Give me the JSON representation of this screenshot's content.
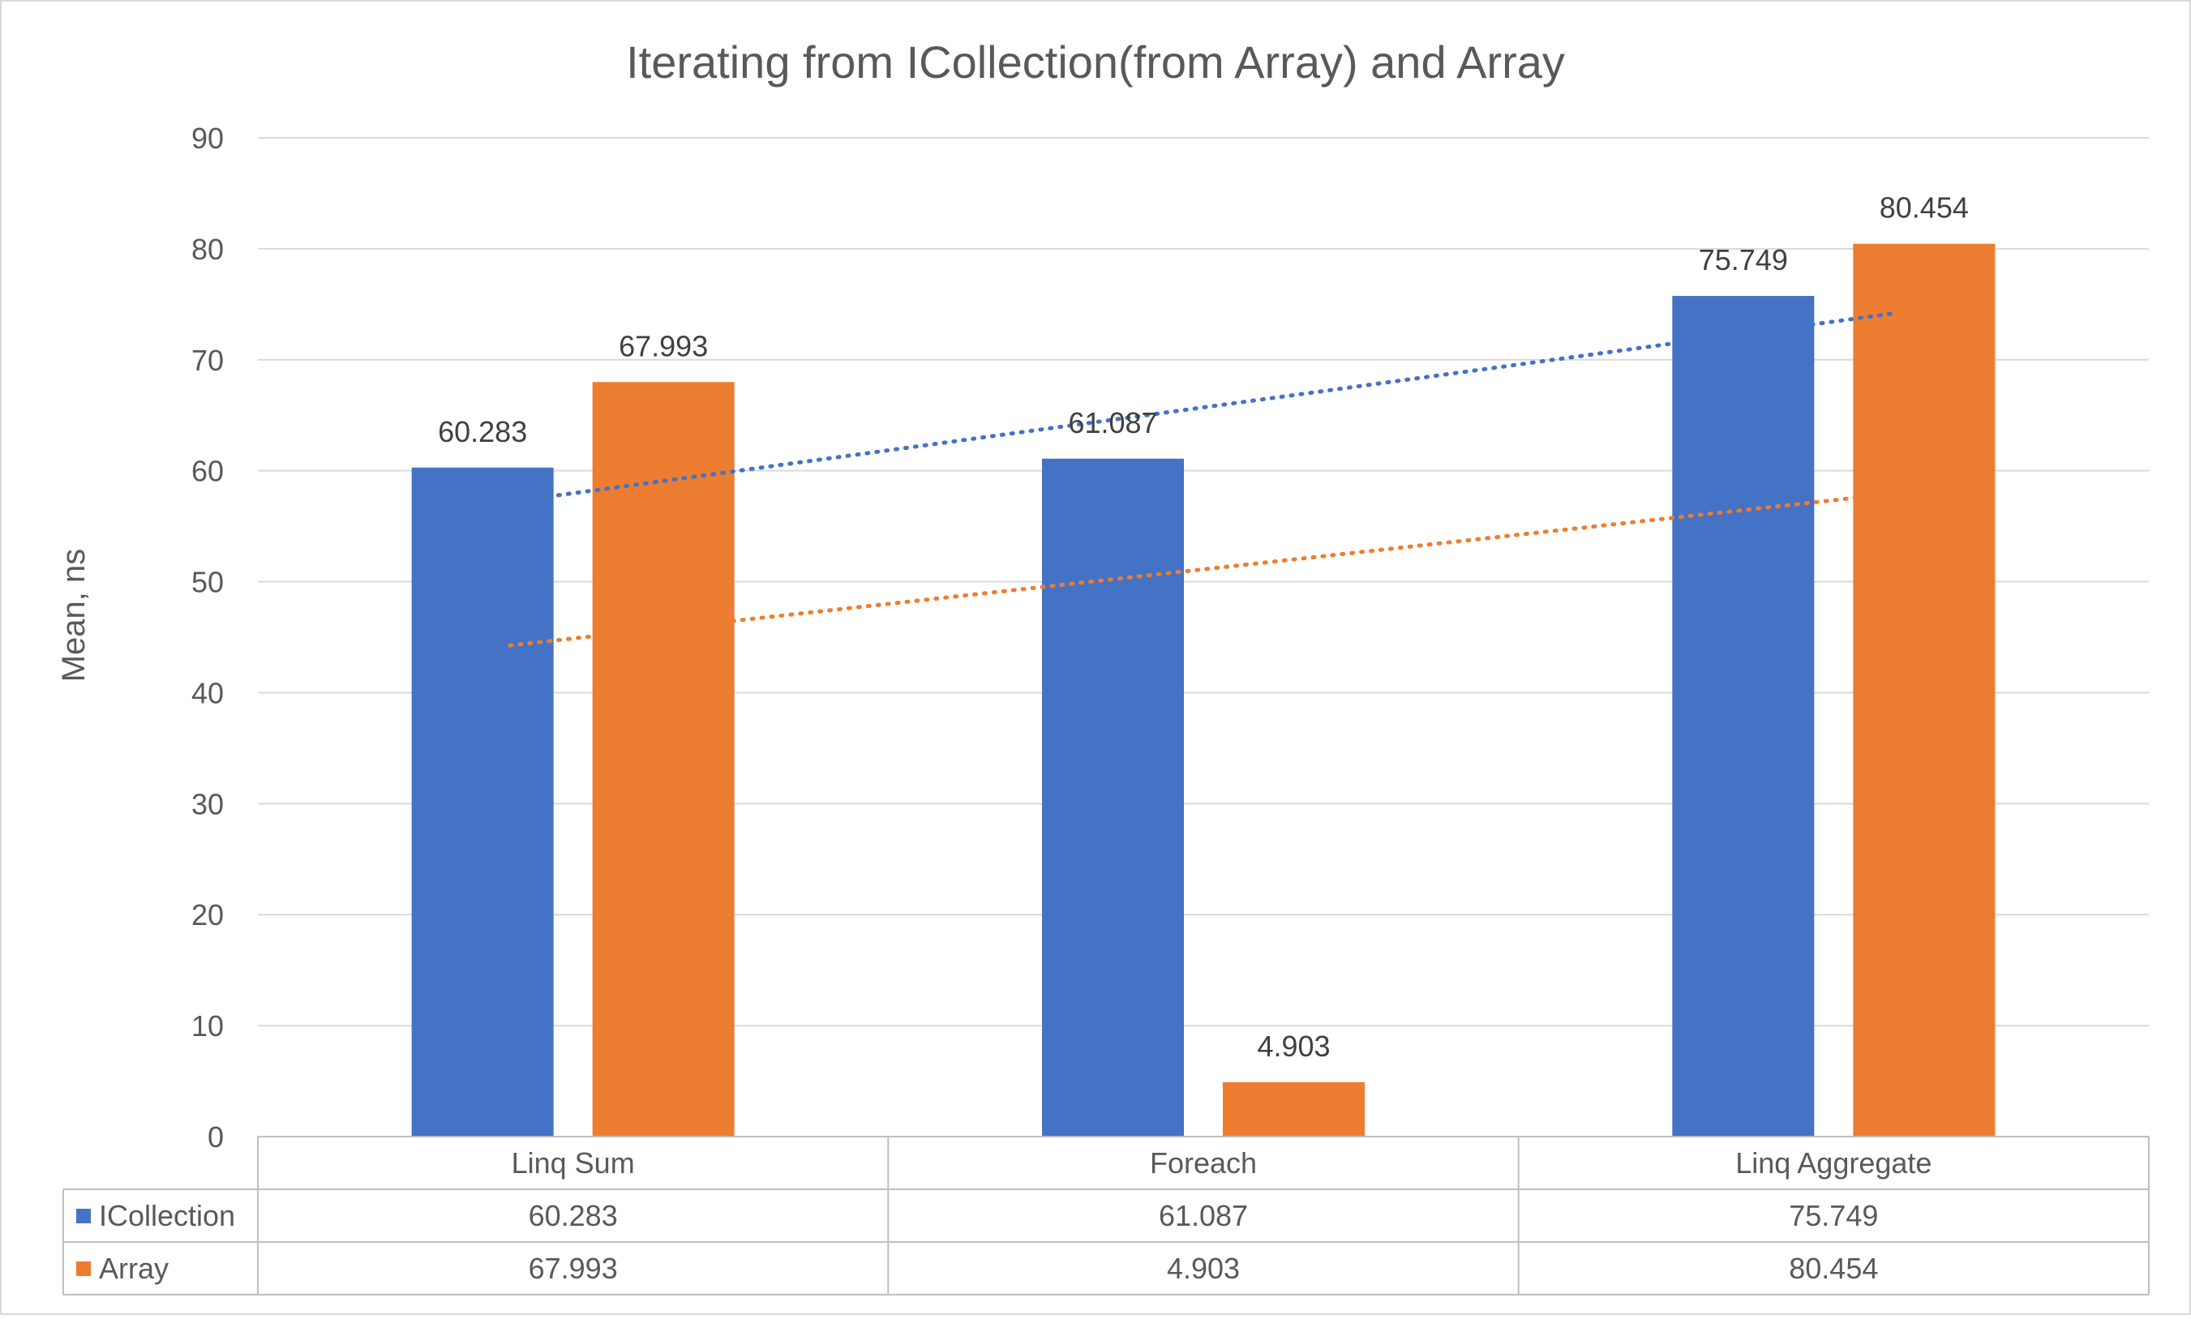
{
  "chart_data": {
    "type": "bar",
    "title": "Iterating from ICollection(from Array) and Array",
    "ylabel": "Mean, ns",
    "xlabel": "",
    "ylim": [
      0,
      90
    ],
    "yticks": [
      0,
      10,
      20,
      30,
      40,
      50,
      60,
      70,
      80,
      90
    ],
    "grid": true,
    "legend": "data-table",
    "categories": [
      "Linq Sum",
      "Foreach",
      "Linq Aggregate"
    ],
    "series": [
      {
        "name": "ICollection",
        "color": "#4472C4",
        "values": [
          60.283,
          61.087,
          75.749
        ],
        "labels": [
          "60.283",
          "61.087",
          "75.749"
        ]
      },
      {
        "name": "Array",
        "color": "#ED7D31",
        "values": [
          67.993,
          4.903,
          80.454
        ],
        "labels": [
          "67.993",
          "4.903",
          "80.454"
        ]
      }
    ],
    "trendlines": [
      {
        "series": "ICollection",
        "type": "linear",
        "style": "dotted",
        "color": "#4472C4"
      },
      {
        "series": "Array",
        "type": "linear",
        "style": "dotted",
        "color": "#ED7D31"
      }
    ]
  }
}
